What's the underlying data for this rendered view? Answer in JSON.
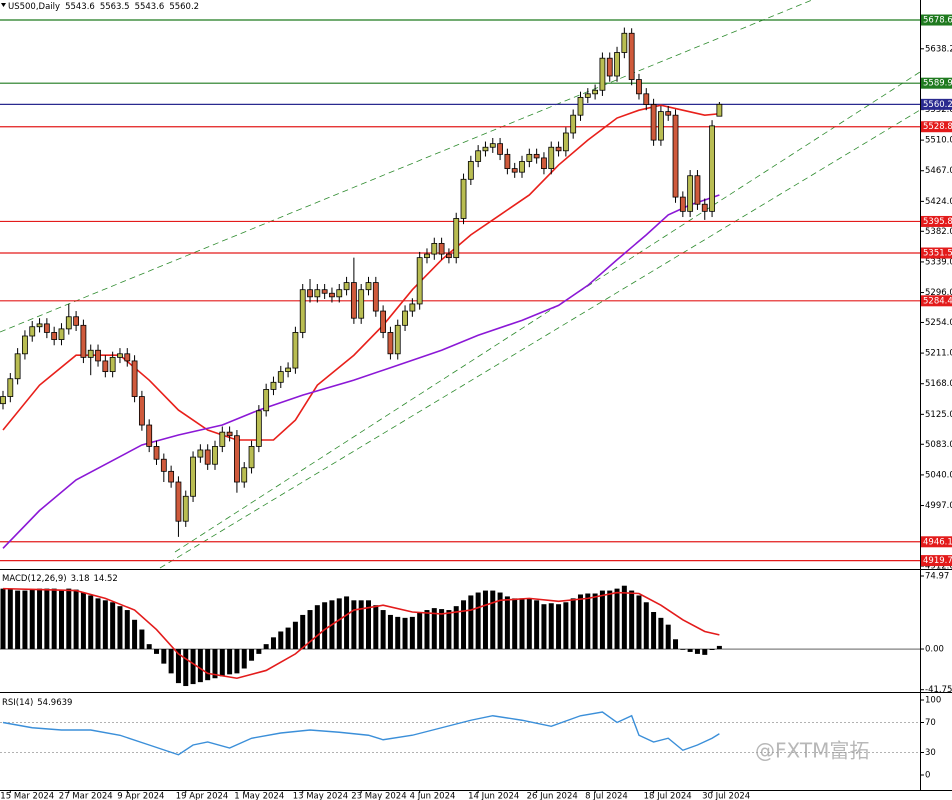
{
  "chart_data": [
    {
      "type": "candlestick",
      "title": "US500,Daily",
      "categories": [
        null,
        "15 Mar 2024",
        null,
        null,
        null,
        null,
        null,
        null,
        null,
        "27 Mar 2024",
        null,
        null,
        null,
        null,
        null,
        null,
        null,
        "9 Apr 2024",
        null,
        null,
        null,
        null,
        null,
        null,
        null,
        "19 Apr 2024",
        null,
        null,
        null,
        null,
        null,
        null,
        null,
        "1 May 2024",
        null,
        null,
        null,
        null,
        null,
        null,
        null,
        "13 May 2024",
        null,
        null,
        null,
        null,
        null,
        null,
        null,
        "23 May 2024",
        null,
        null,
        null,
        null,
        null,
        null,
        null,
        "4 Jun 2024",
        null,
        null,
        null,
        null,
        null,
        null,
        null,
        "14 Jun 2024",
        null,
        null,
        null,
        null,
        null,
        null,
        null,
        "26 Jun 2024",
        null,
        null,
        null,
        null,
        null,
        null,
        null,
        "8 Jul 2024",
        null,
        null,
        null,
        null,
        null,
        null,
        null,
        "18 Jul 2024",
        null,
        null,
        null,
        null,
        null,
        null,
        null,
        "30 Jul 2024",
        null
      ],
      "open": [
        5140,
        5150,
        5175,
        5210,
        5235,
        5248,
        5252,
        5240,
        5230,
        5245,
        5262,
        5250,
        5205,
        5215,
        5200,
        5185,
        5205,
        5210,
        5200,
        5150,
        5110,
        5080,
        5062,
        5045,
        5030,
        4975,
        5010,
        5065,
        5075,
        5055,
        5080,
        5100,
        5095,
        5030,
        5050,
        5080,
        5130,
        5160,
        5170,
        5185,
        5190,
        5240,
        5300,
        5290,
        5300,
        5295,
        5290,
        5300,
        5310,
        5260,
        5300,
        5310,
        5270,
        5240,
        5210,
        5250,
        5270,
        5280,
        5345,
        5350,
        5365,
        5350,
        5345,
        5400,
        5455,
        5480,
        5495,
        5500,
        5505,
        5490,
        5470,
        5465,
        5480,
        5490,
        5485,
        5470,
        5500,
        5495,
        5520,
        5545,
        5570,
        5575,
        5580,
        5625,
        5600,
        5633,
        5660,
        5595,
        5575,
        5560,
        5510,
        5550,
        5545,
        5430,
        5410,
        5460,
        5420,
        5410,
        5543.6
      ],
      "high": [
        5158,
        5183,
        5218,
        5243,
        5256,
        5260,
        5260,
        5248,
        5253,
        5280,
        5270,
        5258,
        5223,
        5223,
        5208,
        5213,
        5218,
        5218,
        5208,
        5158,
        5118,
        5088,
        5070,
        5053,
        5038,
        5018,
        5073,
        5083,
        5083,
        5088,
        5108,
        5108,
        5103,
        5058,
        5088,
        5138,
        5168,
        5178,
        5193,
        5198,
        5248,
        5308,
        5315,
        5308,
        5308,
        5303,
        5308,
        5318,
        5345,
        5308,
        5318,
        5318,
        5278,
        5248,
        5258,
        5278,
        5288,
        5353,
        5358,
        5373,
        5373,
        5358,
        5408,
        5463,
        5488,
        5503,
        5508,
        5513,
        5513,
        5498,
        5478,
        5488,
        5498,
        5498,
        5493,
        5508,
        5508,
        5528,
        5553,
        5578,
        5583,
        5588,
        5633,
        5633,
        5641,
        5668,
        5667,
        5603,
        5583,
        5568,
        5558,
        5558,
        5553,
        5438,
        5468,
        5468,
        5428,
        5538,
        5563.5
      ],
      "low": [
        5132,
        5142,
        5167,
        5202,
        5227,
        5240,
        5232,
        5222,
        5222,
        5237,
        5242,
        5197,
        5180,
        5192,
        5177,
        5177,
        5197,
        5192,
        5142,
        5102,
        5072,
        5054,
        5030,
        5022,
        4953,
        4967,
        5002,
        5057,
        5047,
        5047,
        5072,
        5087,
        5015,
        5022,
        5042,
        5072,
        5122,
        5152,
        5162,
        5177,
        5182,
        5232,
        5282,
        5282,
        5287,
        5282,
        5282,
        5292,
        5252,
        5252,
        5292,
        5262,
        5232,
        5202,
        5202,
        5242,
        5262,
        5272,
        5337,
        5342,
        5342,
        5337,
        5337,
        5392,
        5447,
        5472,
        5487,
        5492,
        5482,
        5462,
        5457,
        5457,
        5472,
        5477,
        5462,
        5462,
        5487,
        5487,
        5512,
        5537,
        5562,
        5567,
        5572,
        5592,
        5592,
        5625,
        5587,
        5567,
        5552,
        5502,
        5502,
        5537,
        5422,
        5402,
        5402,
        5412,
        5398,
        5402,
        5543.6
      ],
      "close": [
        5150,
        5175,
        5210,
        5235,
        5248,
        5252,
        5240,
        5230,
        5245,
        5262,
        5250,
        5205,
        5215,
        5200,
        5185,
        5205,
        5210,
        5200,
        5150,
        5110,
        5080,
        5062,
        5045,
        5030,
        4975,
        5010,
        5065,
        5075,
        5055,
        5080,
        5100,
        5095,
        5030,
        5050,
        5080,
        5130,
        5160,
        5170,
        5185,
        5190,
        5240,
        5300,
        5290,
        5300,
        5295,
        5290,
        5300,
        5310,
        5260,
        5300,
        5310,
        5270,
        5240,
        5210,
        5250,
        5270,
        5280,
        5345,
        5350,
        5365,
        5350,
        5345,
        5400,
        5455,
        5480,
        5495,
        5500,
        5505,
        5490,
        5470,
        5465,
        5480,
        5490,
        5485,
        5470,
        5500,
        5495,
        5520,
        5545,
        5570,
        5575,
        5580,
        5625,
        5600,
        5633,
        5660,
        5595,
        5575,
        5560,
        5510,
        5550,
        5545,
        5430,
        5410,
        5460,
        5420,
        5410,
        5530,
        5560.2
      ],
      "up_color": "#b9bd52",
      "down_color": "#cf5a3c",
      "overlays": [
        {
          "color": "#e8201b",
          "x": [
            0,
            5,
            10,
            16,
            20,
            24,
            28,
            32,
            37,
            40,
            43,
            48,
            52,
            56,
            60,
            64,
            68,
            72,
            76,
            80,
            84,
            87,
            90,
            93,
            96,
            98
          ],
          "values": [
            5103,
            5166,
            5208,
            5208,
            5173,
            5131,
            5103,
            5089,
            5089,
            5117,
            5166,
            5208,
            5250,
            5300,
            5342,
            5377,
            5405,
            5433,
            5475,
            5510,
            5541,
            5552,
            5559,
            5552,
            5545,
            5547
          ]
        },
        {
          "color": "#8b18d6",
          "x": [
            0,
            5,
            10,
            19,
            24,
            30,
            35,
            41,
            48,
            54,
            60,
            65,
            71,
            76,
            80,
            84,
            88,
            91,
            94,
            96,
            98
          ],
          "values": [
            4937,
            4990,
            5033,
            5082,
            5096,
            5110,
            5131,
            5152,
            5173,
            5194,
            5215,
            5236,
            5257,
            5278,
            5306,
            5342,
            5377,
            5405,
            5419,
            5426,
            5433
          ]
        }
      ],
      "levels": [
        {
          "value": 5678.6,
          "color": "#1f7a1f"
        },
        {
          "value": 5589.9,
          "color": "#1f7a1f"
        },
        {
          "value": 5560.2,
          "color": "#2a2a8f"
        },
        {
          "value": 5528.8,
          "color": "#e31b1b"
        },
        {
          "value": 5395.8,
          "color": "#e31b1b"
        },
        {
          "value": 5351.5,
          "color": "#e31b1b"
        },
        {
          "value": 5284.4,
          "color": "#e31b1b"
        },
        {
          "value": 4946.1,
          "color": "#e31b1b"
        },
        {
          "value": 4919.7,
          "color": "#e31b1b"
        }
      ],
      "ylim": [
        4909.3,
        5706.7
      ],
      "yticks": [
        5638.2,
        5552.8,
        {
          "value": 5510,
          "label": "5510.0"
        },
        {
          "value": 5467,
          "label": "5467.0"
        },
        {
          "value": 5424,
          "label": "5424.0"
        },
        {
          "value": 5382,
          "label": "5382.0"
        },
        {
          "value": 5339,
          "label": "5339.0"
        },
        {
          "value": 5296,
          "label": "5296.0"
        },
        {
          "value": 5254,
          "label": "5254.0"
        },
        {
          "value": 5211,
          "label": "5211.0"
        },
        {
          "value": 5168,
          "label": "5168.0"
        },
        {
          "value": 5125,
          "label": "5125.0"
        },
        {
          "value": 5083,
          "label": "5083.0"
        },
        {
          "value": 5040,
          "label": "5040.0"
        },
        {
          "value": 4997,
          "label": "4997.0"
        },
        {
          "value": 4912,
          "label": "4912.0"
        }
      ]
    },
    {
      "type": "macd",
      "title": "MACD(12,26,9)",
      "color": "#000000",
      "values": [
        62,
        62,
        60,
        60,
        61,
        62,
        62,
        62,
        61,
        62,
        61,
        58,
        55,
        52,
        50,
        48,
        44,
        40,
        30,
        20,
        5,
        -5,
        -15,
        -25,
        -35,
        -38,
        -36,
        -34,
        -32,
        -30,
        -28,
        -26,
        -25,
        -20,
        -12,
        -5,
        5,
        12,
        18,
        22,
        28,
        35,
        40,
        45,
        48,
        50,
        52,
        54,
        50,
        50,
        50,
        45,
        40,
        35,
        33,
        32,
        33,
        38,
        40,
        42,
        41,
        40,
        44,
        50,
        55,
        58,
        60,
        60,
        58,
        54,
        52,
        52,
        52,
        50,
        46,
        47,
        46,
        48,
        52,
        56,
        57,
        57,
        60,
        60,
        62,
        65,
        60,
        55,
        48,
        38,
        32,
        25,
        10,
        0,
        -3,
        -5,
        -6,
        -1,
        3.18
      ],
      "signal": {
        "color": "#e31b1b",
        "x": [
          0,
          5,
          10,
          14,
          18,
          21,
          24,
          28,
          32,
          36,
          40,
          44,
          48,
          52,
          56,
          60,
          64,
          68,
          72,
          76,
          80,
          84,
          87,
          90,
          93,
          96,
          98
        ],
        "values": [
          62,
          61,
          60,
          52,
          40,
          20,
          -5,
          -25,
          -30,
          -22,
          -5,
          20,
          40,
          45,
          38,
          36,
          40,
          50,
          52,
          49,
          52,
          58,
          57,
          45,
          30,
          18,
          14.52
        ]
      },
      "ylim": [
        -43.1,
        80.1
      ],
      "yticks": [
        74.97,
        {
          "value": 0,
          "label": "0.00"
        },
        -41.75
      ]
    },
    {
      "type": "line",
      "title": "RSI(14)",
      "color": "#3b8fd9",
      "x": [
        0,
        4,
        8,
        12,
        16,
        20,
        24,
        26,
        28,
        31,
        34,
        38,
        42,
        46,
        50,
        52,
        56,
        60,
        64,
        67,
        71,
        75,
        79,
        82,
        84,
        86,
        87,
        89,
        91,
        93,
        95,
        97,
        98
      ],
      "values": [
        70,
        63,
        60,
        60,
        53,
        40,
        27,
        40,
        44,
        36,
        49,
        56,
        60,
        57,
        53,
        47,
        53,
        63,
        73,
        79,
        73,
        65,
        79,
        84,
        70,
        79,
        53,
        44,
        49,
        33,
        40,
        49,
        54.9639
      ],
      "levels": [
        70,
        30
      ],
      "ylim": [
        -20,
        108
      ],
      "yticks": [
        100,
        70,
        30,
        0
      ]
    }
  ],
  "watermark": "@FXTM富拓"
}
